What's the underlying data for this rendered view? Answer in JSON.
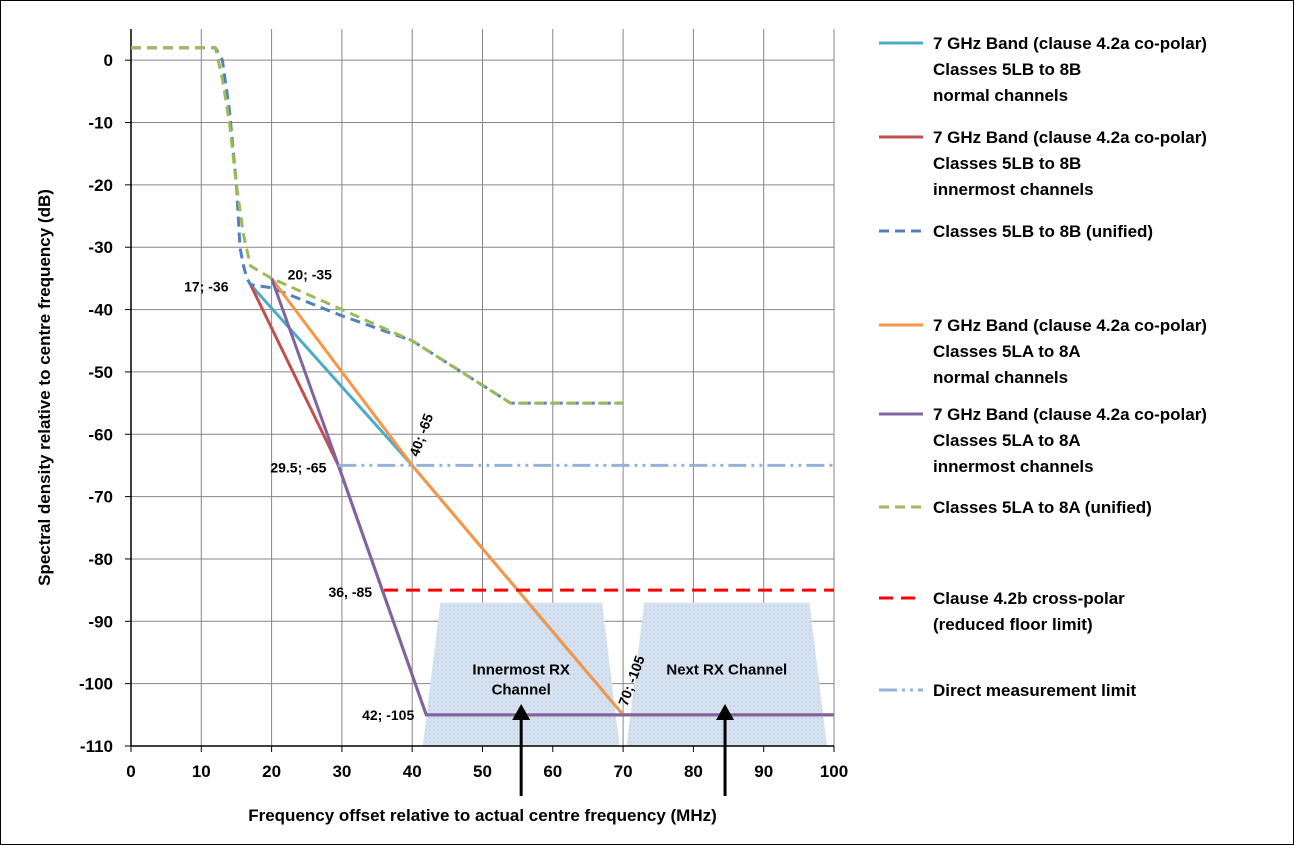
{
  "chart_data": {
    "type": "line",
    "xlabel": "Frequency offset relative to actual centre frequency (MHz)",
    "ylabel": "Spectral density relative to centre frequency (dB)",
    "xlim": [
      0,
      100
    ],
    "ylim": [
      -110,
      5
    ],
    "x_ticks": [
      "0",
      "10",
      "20",
      "30",
      "40",
      "50",
      "60",
      "70",
      "80",
      "90",
      "100"
    ],
    "y_ticks": [
      "0",
      "-10",
      "-20",
      "-30",
      "-40",
      "-50",
      "-60",
      "-70",
      "-80",
      "-90",
      "-100",
      "-110"
    ],
    "grid": true,
    "legend_position": "right",
    "series": [
      {
        "id": "s1",
        "name": "7 GHz Band (clause 4.2a co-polar)\nClasses 5LB to 8B\nnormal channels",
        "color": "#4bacc6",
        "dash": "solid",
        "x": [
          17,
          40,
          70,
          100
        ],
        "y": [
          -36,
          -65,
          -105,
          -105
        ]
      },
      {
        "id": "s2",
        "name": "7 GHz Band (clause 4.2a co-polar)\nClasses 5LB to 8B\ninnermost channels",
        "color": "#c0504d",
        "dash": "solid",
        "x": [
          17,
          29.5,
          42,
          100
        ],
        "y": [
          -36,
          -65,
          -105,
          -105
        ]
      },
      {
        "id": "s3",
        "name": "Classes 5LB to 8B (unified)",
        "color": "#4f81bd",
        "dash": "dash",
        "x": [
          0,
          12,
          13,
          14,
          15,
          15.5,
          16,
          16.5,
          17,
          20,
          30,
          40,
          54,
          70
        ],
        "y": [
          2,
          2,
          0,
          -8,
          -20,
          -30,
          -33,
          -35,
          -36,
          -36.5,
          -41,
          -45,
          -55,
          -55
        ]
      },
      {
        "id": "s4",
        "name": "7 GHz Band (clause 4.2a co-polar)\nClasses 5LA to 8A\nnormal channels",
        "color": "#f79646",
        "dash": "solid",
        "x": [
          20,
          40,
          70,
          100
        ],
        "y": [
          -35,
          -65,
          -105,
          -105
        ]
      },
      {
        "id": "s5",
        "name": "7 GHz Band (clause 4.2a co-polar)\nClasses 5LA to 8A\ninnermost channels",
        "color": "#8064a2",
        "dash": "solid",
        "x": [
          20,
          29.5,
          42,
          100
        ],
        "y": [
          -35,
          -65,
          -105,
          -105
        ]
      },
      {
        "id": "s6",
        "name": "Classes 5LA to 8A (unified)",
        "color": "#9bbb59",
        "dash": "dash",
        "x": [
          0,
          12,
          13,
          14,
          15,
          16,
          17,
          20,
          30,
          40,
          54,
          70
        ],
        "y": [
          2,
          2,
          -3,
          -10,
          -20,
          -28,
          -33,
          -35,
          -40,
          -45,
          -55,
          -55
        ]
      },
      {
        "id": "s7",
        "name": "Clause 4.2b cross-polar\n(reduced floor limit)",
        "color": "#ff0000",
        "dash": "longdash",
        "x": [
          36,
          100
        ],
        "y": [
          -85,
          -85
        ]
      },
      {
        "id": "s8",
        "name": "Direct measurement limit",
        "color": "#95b3d7",
        "dash": "dashdotdot",
        "x": [
          29.5,
          100
        ],
        "y": [
          -65,
          -65
        ]
      }
    ],
    "regions": [
      {
        "id": "innermost",
        "label": "Innermost RX\nChannel",
        "x": [
          41.5,
          44,
          67,
          69.5
        ],
        "y_top": -87,
        "y_bottom": -110,
        "arrow_x": 55.5
      },
      {
        "id": "next",
        "label": "Next RX Channel",
        "x": [
          70.5,
          73,
          96.5,
          99
        ],
        "y_top": -87,
        "y_bottom": -110,
        "arrow_x": 84.5
      }
    ],
    "annotations": [
      {
        "text": "17; -36",
        "x": 17,
        "y": -36,
        "rotate": 0
      },
      {
        "text": "20; -35",
        "x": 20,
        "y": -35,
        "rotate": 0
      },
      {
        "text": "40; -65",
        "x": 40,
        "y": -65,
        "rotate": -70
      },
      {
        "text": "29.5; -65",
        "x": 29.5,
        "y": -65,
        "rotate": 0
      },
      {
        "text": "36, -85",
        "x": 36,
        "y": -85,
        "rotate": 0
      },
      {
        "text": "70; -105",
        "x": 70,
        "y": -105,
        "rotate": -70
      },
      {
        "text": "42; -105",
        "x": 42,
        "y": -105,
        "rotate": 0
      }
    ]
  }
}
